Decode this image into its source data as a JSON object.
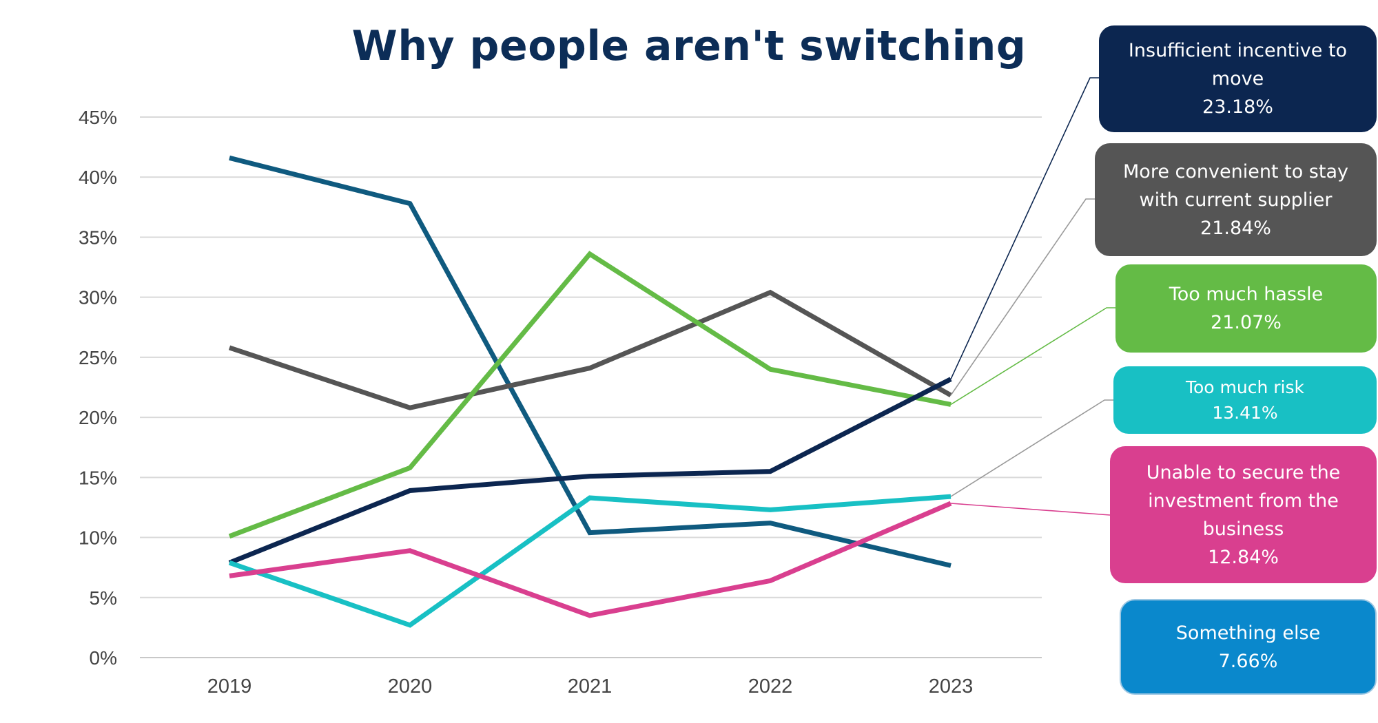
{
  "chart_data": {
    "type": "line",
    "title": "Why people aren't switching",
    "categories": [
      "2019",
      "2020",
      "2021",
      "2022",
      "2023"
    ],
    "ylim": [
      0,
      45
    ],
    "yticks": [
      "0%",
      "5%",
      "10%",
      "15%",
      "20%",
      "25%",
      "30%",
      "35%",
      "40%",
      "45%"
    ],
    "grid": true,
    "series": [
      {
        "key": "something_else",
        "color": "#0f5a7f",
        "values": [
          41.6,
          37.8,
          10.4,
          11.2,
          7.66
        ]
      },
      {
        "key": "more_convenient",
        "color": "#555555",
        "values": [
          25.8,
          20.8,
          24.1,
          30.4,
          21.84
        ]
      },
      {
        "key": "too_much_hassle",
        "color": "#64bb46",
        "values": [
          10.1,
          15.8,
          33.6,
          24.0,
          21.07
        ]
      },
      {
        "key": "insufficient_incentive",
        "color": "#0c2650",
        "values": [
          7.9,
          13.9,
          15.1,
          15.5,
          23.18
        ]
      },
      {
        "key": "too_much_risk",
        "color": "#18c0c4",
        "values": [
          7.9,
          2.7,
          13.3,
          12.3,
          13.41
        ]
      },
      {
        "key": "unable_to_secure",
        "color": "#d93f8f",
        "values": [
          6.8,
          8.9,
          3.5,
          6.4,
          12.84
        ]
      }
    ]
  },
  "callouts": [
    {
      "key": "insufficient_incentive",
      "lines": [
        "Insufficient incentive to",
        "move"
      ],
      "pct": "23.18%",
      "bg": "#0c2650"
    },
    {
      "key": "more_convenient",
      "lines": [
        "More convenient to stay",
        "with current supplier"
      ],
      "pct": "21.84%",
      "bg": "#555555"
    },
    {
      "key": "too_much_hassle",
      "lines": [
        "Too much hassle"
      ],
      "pct": "21.07%",
      "bg": "#64bb46"
    },
    {
      "key": "too_much_risk",
      "lines": [
        "Too much risk"
      ],
      "pct": "13.41%",
      "bg": "#18c0c4"
    },
    {
      "key": "unable_to_secure",
      "lines": [
        "Unable to secure the",
        "investment from the",
        "business"
      ],
      "pct": "12.84%",
      "bg": "#d93f8f"
    },
    {
      "key": "something_else",
      "lines": [
        "Something else"
      ],
      "pct": "7.66%",
      "bg": "#0a88cc"
    }
  ]
}
